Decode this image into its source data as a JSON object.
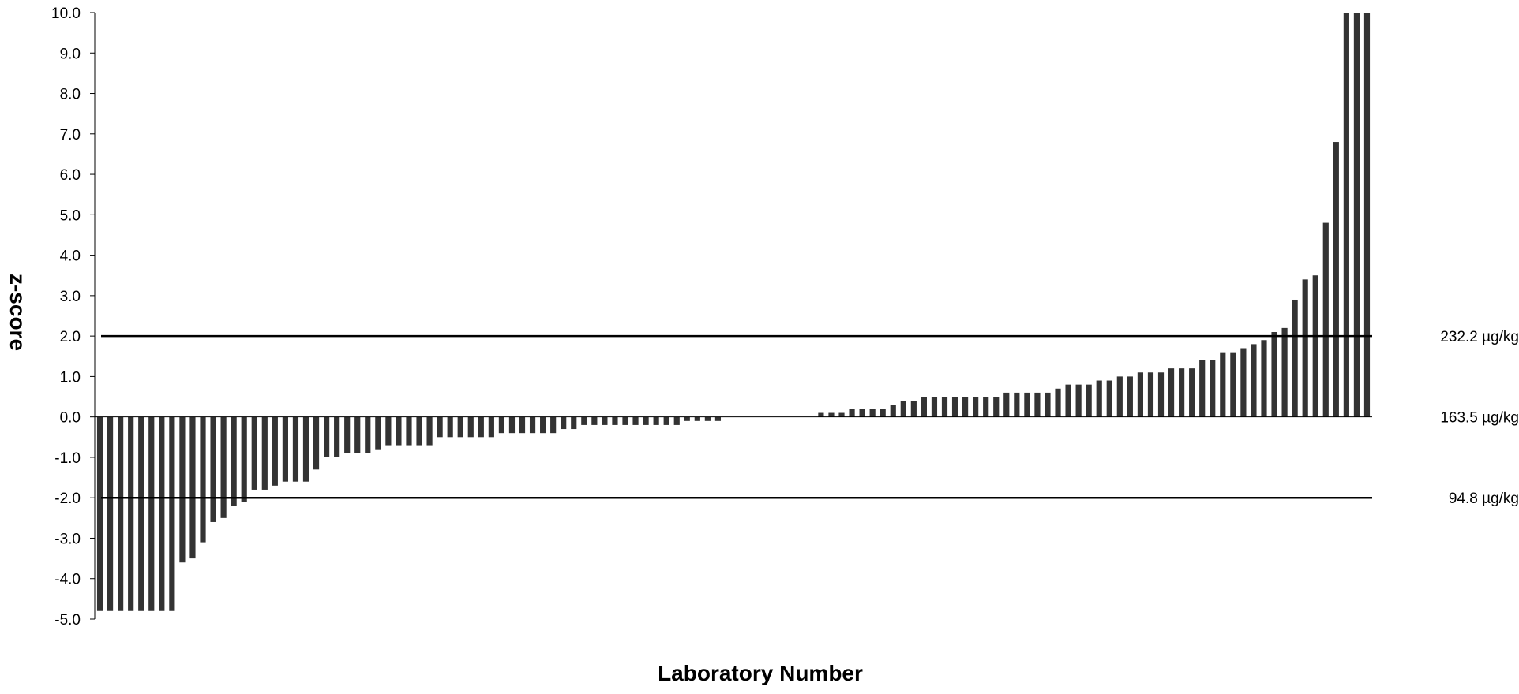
{
  "chart_data": {
    "type": "bar",
    "title": "",
    "xlabel": "Laboratory Number",
    "ylabel": "z-score",
    "ylim": [
      -5.0,
      10.0
    ],
    "yticks": [
      "10.0",
      "9.0",
      "8.0",
      "7.0",
      "6.0",
      "5.0",
      "4.0",
      "3.0",
      "2.0",
      "1.0",
      "0.0",
      "-1.0",
      "-2.0",
      "-3.0",
      "-4.0",
      "-5.0"
    ],
    "grid": false,
    "legend": "none",
    "bar_color": "#333333",
    "reference_lines": [
      {
        "y": 2.0,
        "label": "232.2 µg/kg"
      },
      {
        "y": 0.0,
        "label": "163.5 µg/kg"
      },
      {
        "y": -2.0,
        "label": "94.8 µg/kg"
      }
    ],
    "values": [
      -4.8,
      -4.8,
      -4.8,
      -4.8,
      -4.8,
      -4.8,
      -4.8,
      -4.8,
      -3.6,
      -3.5,
      -3.1,
      -2.6,
      -2.5,
      -2.2,
      -2.1,
      -1.8,
      -1.8,
      -1.7,
      -1.6,
      -1.6,
      -1.6,
      -1.3,
      -1.0,
      -1.0,
      -0.9,
      -0.9,
      -0.9,
      -0.8,
      -0.7,
      -0.7,
      -0.7,
      -0.7,
      -0.7,
      -0.5,
      -0.5,
      -0.5,
      -0.5,
      -0.5,
      -0.5,
      -0.4,
      -0.4,
      -0.4,
      -0.4,
      -0.4,
      -0.4,
      -0.3,
      -0.3,
      -0.2,
      -0.2,
      -0.2,
      -0.2,
      -0.2,
      -0.2,
      -0.2,
      -0.2,
      -0.2,
      -0.2,
      -0.1,
      -0.1,
      -0.1,
      -0.1,
      0,
      0,
      0,
      0,
      0,
      0,
      0,
      0,
      0,
      0.1,
      0.1,
      0.1,
      0.2,
      0.2,
      0.2,
      0.2,
      0.3,
      0.4,
      0.4,
      0.5,
      0.5,
      0.5,
      0.5,
      0.5,
      0.5,
      0.5,
      0.5,
      0.6,
      0.6,
      0.6,
      0.6,
      0.6,
      0.7,
      0.8,
      0.8,
      0.8,
      0.9,
      0.9,
      1.0,
      1.0,
      1.1,
      1.1,
      1.1,
      1.2,
      1.2,
      1.2,
      1.4,
      1.4,
      1.6,
      1.6,
      1.7,
      1.8,
      1.9,
      2.1,
      2.2,
      2.9,
      3.4,
      3.5,
      4.8,
      6.8,
      10.0,
      10.0,
      10.0
    ]
  }
}
